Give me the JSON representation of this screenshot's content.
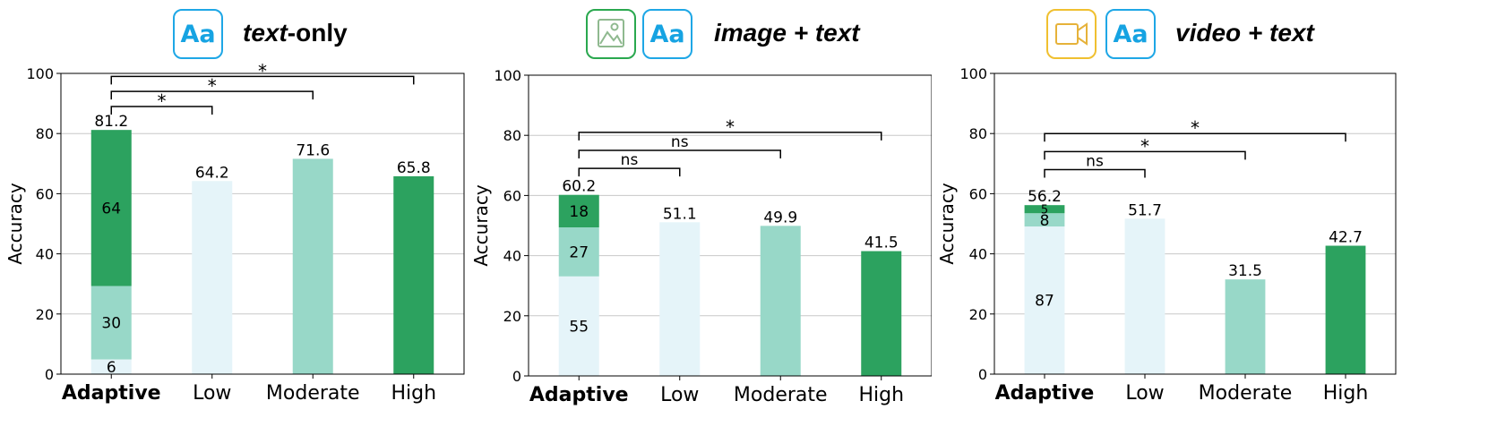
{
  "colors": {
    "light": "#e5f4f9",
    "medium": "#98d8c8",
    "dark": "#2ca25f",
    "grid": "#c8c8c8",
    "icon_text_border": "#1ea7e6",
    "icon_image_border": "#2aa84f",
    "icon_video_border": "#f0c030"
  },
  "chart_data": [
    {
      "type": "bar",
      "header": {
        "title_italic": "text",
        "title_rest": "-only",
        "icons": [
          "text-aa-icon"
        ],
        "aa_text": "Aa"
      },
      "ylabel": "Accuracy",
      "ylim": [
        0,
        100
      ],
      "yticks": [
        "0",
        "20",
        "40",
        "60",
        "80",
        "100"
      ],
      "grid": "horizontal",
      "categories": [
        "Adaptive",
        "Low",
        "Moderate",
        "High"
      ],
      "bars": [
        {
          "category": "Adaptive",
          "total": 81.2,
          "total_label": "81.2",
          "segments": [
            {
              "level": "light",
              "value": 4.9,
              "label": "6"
            },
            {
              "level": "medium",
              "value": 24.4,
              "label": "30"
            },
            {
              "level": "dark",
              "value": 51.9,
              "label": "64"
            }
          ]
        },
        {
          "category": "Low",
          "total": 64.2,
          "total_label": "64.2",
          "segments": [
            {
              "level": "light",
              "value": 64.2
            }
          ]
        },
        {
          "category": "Moderate",
          "total": 71.6,
          "total_label": "71.6",
          "segments": [
            {
              "level": "medium",
              "value": 71.6
            }
          ]
        },
        {
          "category": "High",
          "total": 65.8,
          "total_label": "65.8",
          "segments": [
            {
              "level": "dark",
              "value": 65.8
            }
          ]
        }
      ],
      "brackets": [
        {
          "from": 0,
          "to": 1,
          "label": "*",
          "y": 89
        },
        {
          "from": 0,
          "to": 2,
          "label": "*",
          "y": 94
        },
        {
          "from": 0,
          "to": 3,
          "label": "*",
          "y": 99
        }
      ]
    },
    {
      "type": "bar",
      "header": {
        "title_italic": "image + text",
        "title_rest": "",
        "icons": [
          "image-icon",
          "text-aa-icon"
        ],
        "aa_text": "Aa"
      },
      "ylabel": "Accuracy",
      "ylim": [
        0,
        100
      ],
      "yticks": [
        "0",
        "20",
        "40",
        "60",
        "80",
        "100"
      ],
      "grid": "horizontal",
      "categories": [
        "Adaptive",
        "Low",
        "Moderate",
        "High"
      ],
      "bars": [
        {
          "category": "Adaptive",
          "total": 60.2,
          "total_label": "60.2",
          "segments": [
            {
              "level": "light",
              "value": 33.1,
              "label": "55"
            },
            {
              "level": "medium",
              "value": 16.3,
              "label": "27"
            },
            {
              "level": "dark",
              "value": 10.8,
              "label": "18"
            }
          ]
        },
        {
          "category": "Low",
          "total": 51.1,
          "total_label": "51.1",
          "segments": [
            {
              "level": "light",
              "value": 51.1
            }
          ]
        },
        {
          "category": "Moderate",
          "total": 49.9,
          "total_label": "49.9",
          "segments": [
            {
              "level": "medium",
              "value": 49.9
            }
          ]
        },
        {
          "category": "High",
          "total": 41.5,
          "total_label": "41.5",
          "segments": [
            {
              "level": "dark",
              "value": 41.5
            }
          ]
        }
      ],
      "brackets": [
        {
          "from": 0,
          "to": 1,
          "label": "ns",
          "y": 69
        },
        {
          "from": 0,
          "to": 2,
          "label": "ns",
          "y": 75
        },
        {
          "from": 0,
          "to": 3,
          "label": "*",
          "y": 81
        }
      ]
    },
    {
      "type": "bar",
      "header": {
        "title_italic": "video + text",
        "title_rest": "",
        "icons": [
          "video-icon",
          "text-aa-icon"
        ],
        "aa_text": "Aa"
      },
      "ylabel": "Accuracy",
      "ylim": [
        0,
        100
      ],
      "yticks": [
        "0",
        "20",
        "40",
        "60",
        "80",
        "100"
      ],
      "grid": "horizontal",
      "categories": [
        "Adaptive",
        "Low",
        "Moderate",
        "High"
      ],
      "bars": [
        {
          "category": "Adaptive",
          "total": 56.2,
          "total_label": "56.2",
          "segments": [
            {
              "level": "light",
              "value": 49.1,
              "label": "87"
            },
            {
              "level": "medium",
              "value": 4.4,
              "label": "8"
            },
            {
              "level": "dark",
              "value": 2.7,
              "label": "5"
            }
          ]
        },
        {
          "category": "Low",
          "total": 51.7,
          "total_label": "51.7",
          "segments": [
            {
              "level": "light",
              "value": 51.7
            }
          ]
        },
        {
          "category": "Moderate",
          "total": 31.5,
          "total_label": "31.5",
          "segments": [
            {
              "level": "medium",
              "value": 31.5
            }
          ]
        },
        {
          "category": "High",
          "total": 42.7,
          "total_label": "42.7",
          "segments": [
            {
              "level": "dark",
              "value": 42.7
            }
          ]
        }
      ],
      "brackets": [
        {
          "from": 0,
          "to": 1,
          "label": "ns",
          "y": 68
        },
        {
          "from": 0,
          "to": 2,
          "label": "*",
          "y": 74
        },
        {
          "from": 0,
          "to": 3,
          "label": "*",
          "y": 80
        }
      ]
    }
  ]
}
